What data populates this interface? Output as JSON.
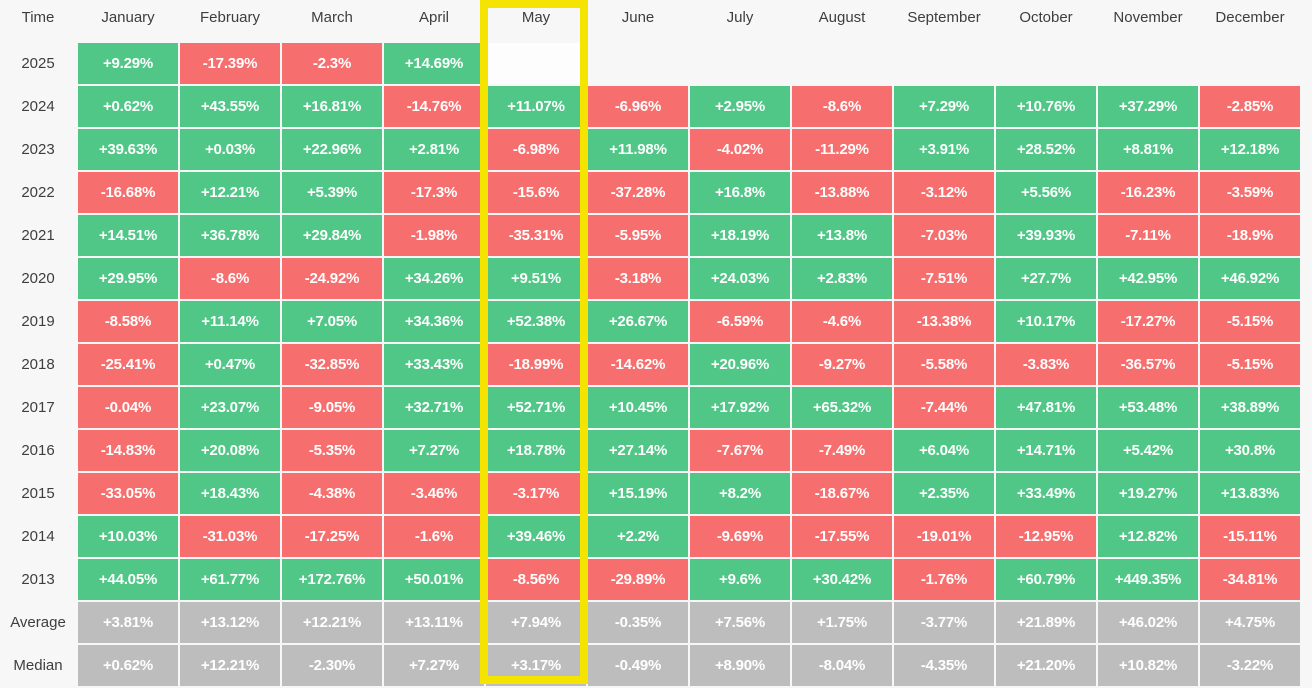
{
  "colors": {
    "positive": "#50c787",
    "negative": "#f76e6e",
    "summary": "#bdbdbd",
    "highlight": "#f5e401",
    "background": "#f7f7f8",
    "cell_text": "#ffffff",
    "label_text": "#3e3e3e"
  },
  "chart_data": {
    "type": "heatmap",
    "title": "Monthly returns heatmap by year",
    "highlighted_column": "May",
    "columns": [
      "Time",
      "January",
      "February",
      "March",
      "April",
      "May",
      "June",
      "July",
      "August",
      "September",
      "October",
      "November",
      "December"
    ],
    "rows": [
      {
        "label": "2025",
        "type": "year",
        "values": [
          "+9.29%",
          "-17.39%",
          "-2.3%",
          "+14.69%",
          "",
          null,
          null,
          null,
          null,
          null,
          null,
          null
        ]
      },
      {
        "label": "2024",
        "type": "year",
        "values": [
          "+0.62%",
          "+43.55%",
          "+16.81%",
          "-14.76%",
          "+11.07%",
          "-6.96%",
          "+2.95%",
          "-8.6%",
          "+7.29%",
          "+10.76%",
          "+37.29%",
          "-2.85%"
        ]
      },
      {
        "label": "2023",
        "type": "year",
        "values": [
          "+39.63%",
          "+0.03%",
          "+22.96%",
          "+2.81%",
          "-6.98%",
          "+11.98%",
          "-4.02%",
          "-11.29%",
          "+3.91%",
          "+28.52%",
          "+8.81%",
          "+12.18%"
        ]
      },
      {
        "label": "2022",
        "type": "year",
        "values": [
          "-16.68%",
          "+12.21%",
          "+5.39%",
          "-17.3%",
          "-15.6%",
          "-37.28%",
          "+16.8%",
          "-13.88%",
          "-3.12%",
          "+5.56%",
          "-16.23%",
          "-3.59%"
        ]
      },
      {
        "label": "2021",
        "type": "year",
        "values": [
          "+14.51%",
          "+36.78%",
          "+29.84%",
          "-1.98%",
          "-35.31%",
          "-5.95%",
          "+18.19%",
          "+13.8%",
          "-7.03%",
          "+39.93%",
          "-7.11%",
          "-18.9%"
        ]
      },
      {
        "label": "2020",
        "type": "year",
        "values": [
          "+29.95%",
          "-8.6%",
          "-24.92%",
          "+34.26%",
          "+9.51%",
          "-3.18%",
          "+24.03%",
          "+2.83%",
          "-7.51%",
          "+27.7%",
          "+42.95%",
          "+46.92%"
        ]
      },
      {
        "label": "2019",
        "type": "year",
        "values": [
          "-8.58%",
          "+11.14%",
          "+7.05%",
          "+34.36%",
          "+52.38%",
          "+26.67%",
          "-6.59%",
          "-4.6%",
          "-13.38%",
          "+10.17%",
          "-17.27%",
          "-5.15%"
        ]
      },
      {
        "label": "2018",
        "type": "year",
        "values": [
          "-25.41%",
          "+0.47%",
          "-32.85%",
          "+33.43%",
          "-18.99%",
          "-14.62%",
          "+20.96%",
          "-9.27%",
          "-5.58%",
          "-3.83%",
          "-36.57%",
          "-5.15%"
        ]
      },
      {
        "label": "2017",
        "type": "year",
        "values": [
          "-0.04%",
          "+23.07%",
          "-9.05%",
          "+32.71%",
          "+52.71%",
          "+10.45%",
          "+17.92%",
          "+65.32%",
          "-7.44%",
          "+47.81%",
          "+53.48%",
          "+38.89%"
        ]
      },
      {
        "label": "2016",
        "type": "year",
        "values": [
          "-14.83%",
          "+20.08%",
          "-5.35%",
          "+7.27%",
          "+18.78%",
          "+27.14%",
          "-7.67%",
          "-7.49%",
          "+6.04%",
          "+14.71%",
          "+5.42%",
          "+30.8%"
        ]
      },
      {
        "label": "2015",
        "type": "year",
        "values": [
          "-33.05%",
          "+18.43%",
          "-4.38%",
          "-3.46%",
          "-3.17%",
          "+15.19%",
          "+8.2%",
          "-18.67%",
          "+2.35%",
          "+33.49%",
          "+19.27%",
          "+13.83%"
        ]
      },
      {
        "label": "2014",
        "type": "year",
        "values": [
          "+10.03%",
          "-31.03%",
          "-17.25%",
          "-1.6%",
          "+39.46%",
          "+2.2%",
          "-9.69%",
          "-17.55%",
          "-19.01%",
          "-12.95%",
          "+12.82%",
          "-15.11%"
        ]
      },
      {
        "label": "2013",
        "type": "year",
        "values": [
          "+44.05%",
          "+61.77%",
          "+172.76%",
          "+50.01%",
          "-8.56%",
          "-29.89%",
          "+9.6%",
          "+30.42%",
          "-1.76%",
          "+60.79%",
          "+449.35%",
          "-34.81%"
        ]
      },
      {
        "label": "Average",
        "type": "summary",
        "values": [
          "+3.81%",
          "+13.12%",
          "+12.21%",
          "+13.11%",
          "+7.94%",
          "-0.35%",
          "+7.56%",
          "+1.75%",
          "-3.77%",
          "+21.89%",
          "+46.02%",
          "+4.75%"
        ]
      },
      {
        "label": "Median",
        "type": "summary",
        "values": [
          "+0.62%",
          "+12.21%",
          "-2.30%",
          "+7.27%",
          "+3.17%",
          "-0.49%",
          "+8.90%",
          "-8.04%",
          "-4.35%",
          "+21.20%",
          "+10.82%",
          "-3.22%"
        ]
      }
    ]
  }
}
